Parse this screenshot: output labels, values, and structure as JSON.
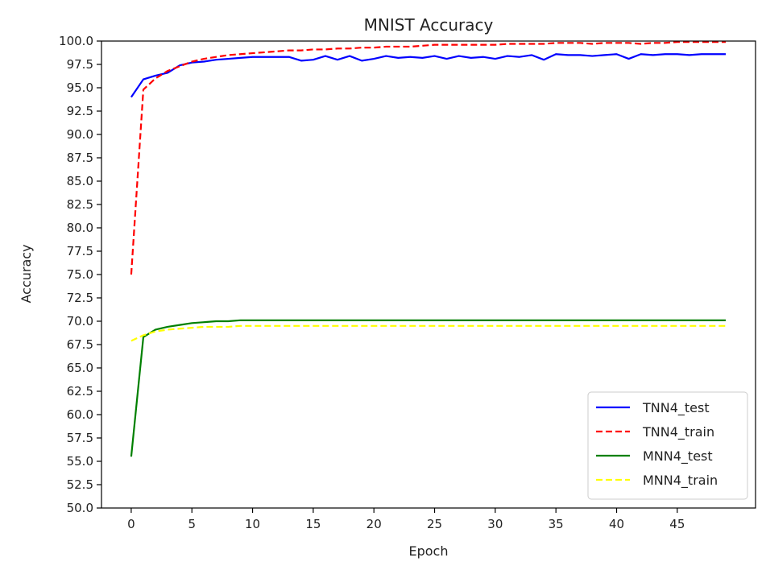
{
  "chart_data": {
    "type": "line",
    "title": "MNIST Accuracy",
    "xlabel": "Epoch",
    "ylabel": "Accuracy",
    "xlim": [
      -2.45,
      51.45
    ],
    "ylim": [
      50.0,
      100.0
    ],
    "x_ticks": [
      0,
      5,
      10,
      15,
      20,
      25,
      30,
      35,
      40,
      45
    ],
    "y_ticks": [
      50.0,
      52.5,
      55.0,
      57.5,
      60.0,
      62.5,
      65.0,
      67.5,
      70.0,
      72.5,
      75.0,
      77.5,
      80.0,
      82.5,
      85.0,
      87.5,
      90.0,
      92.5,
      95.0,
      97.5,
      100.0
    ],
    "grid": false,
    "legend_position": "lower-right",
    "series": [
      {
        "name": "TNN4_test",
        "color": "#0000ff",
        "style": "solid",
        "values": [
          94.0,
          95.9,
          96.3,
          96.6,
          97.4,
          97.7,
          97.8,
          98.0,
          98.1,
          98.2,
          98.3,
          98.3,
          98.3,
          98.3,
          97.9,
          98.0,
          98.4,
          98.0,
          98.4,
          97.9,
          98.1,
          98.4,
          98.2,
          98.3,
          98.2,
          98.4,
          98.1,
          98.4,
          98.2,
          98.3,
          98.1,
          98.4,
          98.3,
          98.5,
          98.0,
          98.6,
          98.5,
          98.5,
          98.4,
          98.5,
          98.6,
          98.1,
          98.6,
          98.5,
          98.6,
          98.6,
          98.5,
          98.6,
          98.6,
          98.6
        ]
      },
      {
        "name": "TNN4_train",
        "color": "#ff0000",
        "style": "dashed",
        "values": [
          75.0,
          94.8,
          96.0,
          96.8,
          97.3,
          97.8,
          98.1,
          98.3,
          98.5,
          98.6,
          98.7,
          98.8,
          98.9,
          99.0,
          99.0,
          99.1,
          99.1,
          99.2,
          99.2,
          99.3,
          99.3,
          99.4,
          99.4,
          99.4,
          99.5,
          99.6,
          99.6,
          99.6,
          99.6,
          99.6,
          99.6,
          99.7,
          99.7,
          99.7,
          99.7,
          99.8,
          99.8,
          99.8,
          99.7,
          99.8,
          99.8,
          99.8,
          99.7,
          99.8,
          99.8,
          99.9,
          99.9,
          99.9,
          99.9,
          99.9
        ]
      },
      {
        "name": "MNN4_test",
        "color": "#008000",
        "style": "solid",
        "values": [
          55.5,
          68.3,
          69.1,
          69.4,
          69.6,
          69.8,
          69.9,
          70.0,
          70.0,
          70.1,
          70.1,
          70.1,
          70.1,
          70.1,
          70.1,
          70.1,
          70.1,
          70.1,
          70.1,
          70.1,
          70.1,
          70.1,
          70.1,
          70.1,
          70.1,
          70.1,
          70.1,
          70.1,
          70.1,
          70.1,
          70.1,
          70.1,
          70.1,
          70.1,
          70.1,
          70.1,
          70.1,
          70.1,
          70.1,
          70.1,
          70.1,
          70.1,
          70.1,
          70.1,
          70.1,
          70.1,
          70.1,
          70.1,
          70.1,
          70.1
        ]
      },
      {
        "name": "MNN4_train",
        "color": "#ffff00",
        "style": "dashed",
        "values": [
          67.9,
          68.5,
          68.9,
          69.1,
          69.2,
          69.3,
          69.4,
          69.4,
          69.4,
          69.5,
          69.5,
          69.5,
          69.5,
          69.5,
          69.5,
          69.5,
          69.5,
          69.5,
          69.5,
          69.5,
          69.5,
          69.5,
          69.5,
          69.5,
          69.5,
          69.5,
          69.5,
          69.5,
          69.5,
          69.5,
          69.5,
          69.5,
          69.5,
          69.5,
          69.5,
          69.5,
          69.5,
          69.5,
          69.5,
          69.5,
          69.5,
          69.5,
          69.5,
          69.5,
          69.5,
          69.5,
          69.5,
          69.5,
          69.5,
          69.5
        ]
      }
    ]
  }
}
